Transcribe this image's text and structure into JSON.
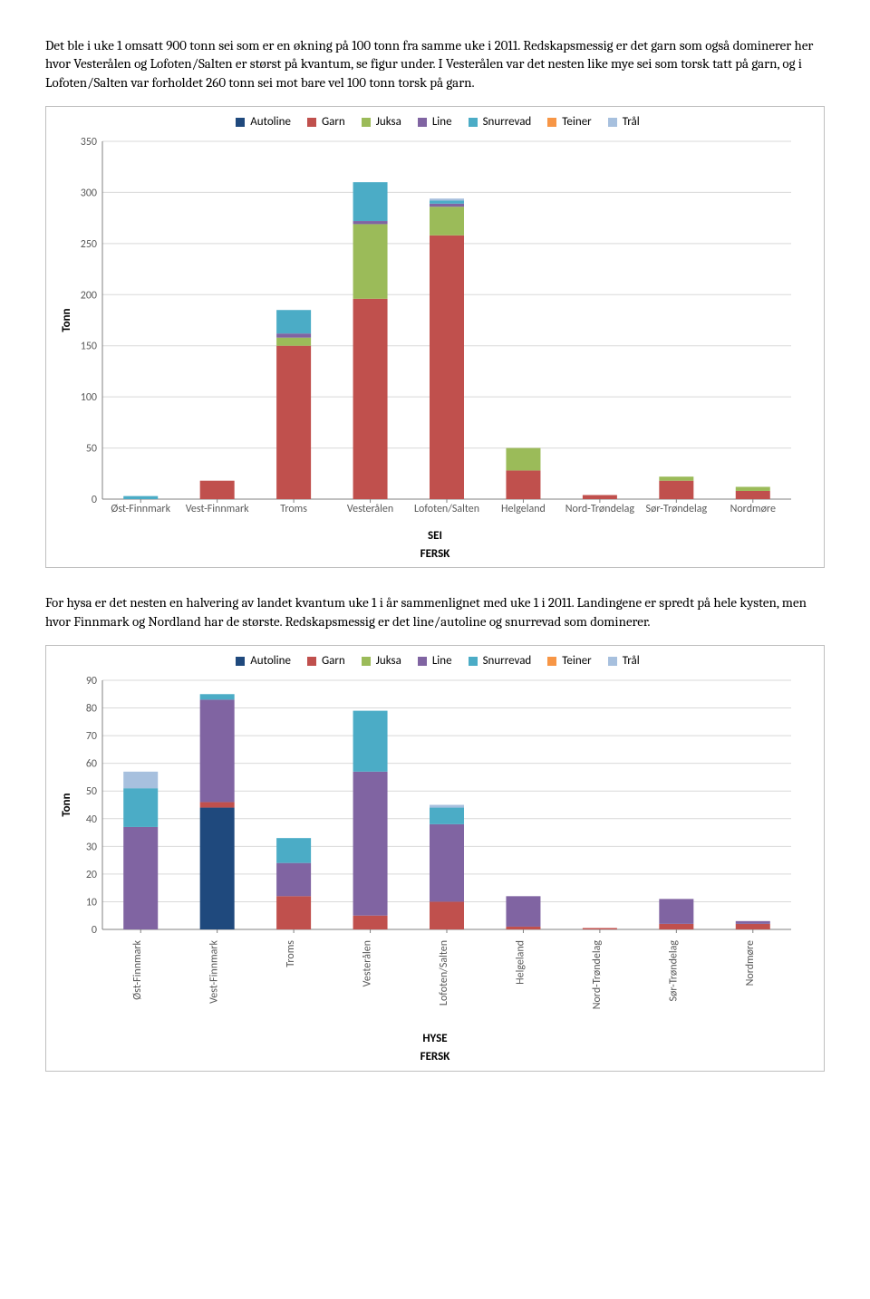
{
  "paragraph1": "Det ble i uke 1 omsatt 900 tonn sei som er en økning på 100 tonn fra samme uke i 2011. Redskapsmessig er det garn som også dominerer her hvor Vesterålen og Lofoten/Salten er størst på kvantum, se figur under. I Vesterålen var det nesten like mye sei som torsk tatt på garn, og i Lofoten/Salten var forholdet 260 tonn sei mot bare vel 100 tonn torsk på garn.",
  "paragraph2": "For hysa er det nesten en halvering av landet kvantum uke 1 i år sammenlignet med uke 1 i 2011. Landingene er spredt på hele kysten, men hvor Finnmark og Nordland har de største. Redskapsmessig er det line/autoline og snurrevad som dominerer.",
  "legend_items": [
    {
      "label": "Autoline",
      "color": "#1f497d"
    },
    {
      "label": "Garn",
      "color": "#c0504d"
    },
    {
      "label": "Juksa",
      "color": "#9bbb59"
    },
    {
      "label": "Line",
      "color": "#8064a2"
    },
    {
      "label": "Snurrevad",
      "color": "#4bacc6"
    },
    {
      "label": "Teiner",
      "color": "#f79646"
    },
    {
      "label": "Trål",
      "color": "#a7c0de"
    }
  ],
  "chart1": {
    "type": "stacked-bar",
    "y_axis_title": "Tonn",
    "ymax": 350,
    "ytick_step": 50,
    "categories": [
      "Øst-Finnmark",
      "Vest-Finnmark",
      "Troms",
      "Vesterålen",
      "Lofoten/Salten",
      "Helgeland",
      "Nord-Trøndelag",
      "Sør-Trøndelag",
      "Nordmøre"
    ],
    "series": [
      {
        "name": "Autoline",
        "color": "#1f497d",
        "values": [
          0,
          0,
          0,
          0,
          0,
          0,
          0,
          0,
          0
        ]
      },
      {
        "name": "Garn",
        "color": "#c0504d",
        "values": [
          0,
          18,
          150,
          196,
          258,
          28,
          4,
          18,
          8
        ]
      },
      {
        "name": "Juksa",
        "color": "#9bbb59",
        "values": [
          0,
          0,
          8,
          73,
          28,
          22,
          0,
          4,
          4
        ]
      },
      {
        "name": "Line",
        "color": "#8064a2",
        "values": [
          0,
          0,
          4,
          3,
          3,
          0,
          0,
          0,
          0
        ]
      },
      {
        "name": "Snurrevad",
        "color": "#4bacc6",
        "values": [
          3,
          0,
          23,
          38,
          3,
          0,
          0,
          0,
          0
        ]
      },
      {
        "name": "Teiner",
        "color": "#f79646",
        "values": [
          0,
          0,
          0,
          0,
          0,
          0,
          0,
          0,
          0
        ]
      },
      {
        "name": "Trål",
        "color": "#a7c0de",
        "values": [
          0,
          0,
          0,
          0,
          2,
          0,
          0,
          0,
          0
        ]
      }
    ],
    "footer1": "SEI",
    "footer2": "FERSK",
    "bar_width": 0.45
  },
  "chart2": {
    "type": "stacked-bar",
    "y_axis_title": "Tonn",
    "ymax": 90,
    "ytick_step": 10,
    "categories": [
      "Øst-Finnmark",
      "Vest-Finnmark",
      "Troms",
      "Vesterålen",
      "Lofoten/Salten",
      "Helgeland",
      "Nord-Trøndelag",
      "Sør-Trøndelag",
      "Nordmøre"
    ],
    "series": [
      {
        "name": "Autoline",
        "color": "#1f497d",
        "values": [
          0,
          44,
          0,
          0,
          0,
          0,
          0,
          0,
          0
        ]
      },
      {
        "name": "Garn",
        "color": "#c0504d",
        "values": [
          0,
          2,
          12,
          5,
          10,
          1,
          0.5,
          2,
          2
        ]
      },
      {
        "name": "Juksa",
        "color": "#9bbb59",
        "values": [
          0,
          0,
          0,
          0,
          0,
          0,
          0,
          0,
          0
        ]
      },
      {
        "name": "Line",
        "color": "#8064a2",
        "values": [
          37,
          37,
          12,
          52,
          28,
          11,
          0,
          9,
          1
        ]
      },
      {
        "name": "Snurrevad",
        "color": "#4bacc6",
        "values": [
          14,
          2,
          9,
          22,
          6,
          0,
          0,
          0,
          0
        ]
      },
      {
        "name": "Teiner",
        "color": "#f79646",
        "values": [
          0,
          0,
          0,
          0,
          0,
          0,
          0,
          0,
          0
        ]
      },
      {
        "name": "Trål",
        "color": "#a7c0de",
        "values": [
          6,
          0,
          0,
          0,
          1,
          0,
          0,
          0,
          0
        ]
      }
    ],
    "footer1": "HYSE",
    "footer2": "FERSK",
    "bar_width": 0.45,
    "rotate_x_labels": true
  }
}
